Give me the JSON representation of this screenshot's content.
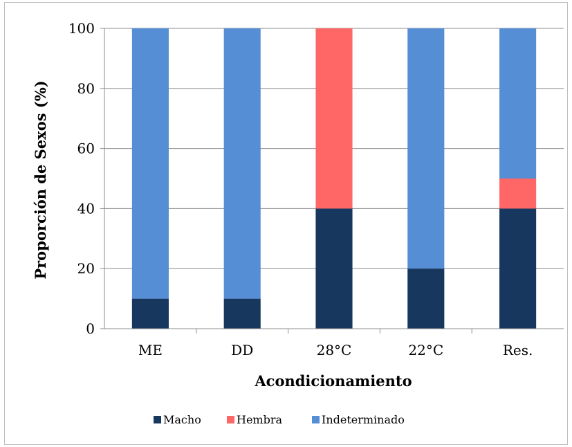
{
  "chart_data": {
    "type": "bar",
    "stacked": true,
    "categories": [
      "ME",
      "DD",
      "28°C",
      "22°C",
      "Res."
    ],
    "series": [
      {
        "name": "Macho",
        "color": "#17375e",
        "values": [
          10,
          10,
          40,
          20,
          40
        ]
      },
      {
        "name": "Hembra",
        "color": "#ff6666",
        "values": [
          0,
          0,
          60,
          0,
          10
        ]
      },
      {
        "name": "Indeterminado",
        "color": "#558ed5",
        "values": [
          90,
          90,
          0,
          80,
          50
        ]
      }
    ],
    "xlabel": "Acondicionamiento",
    "ylabel": "Proporción de Sexos  (%)",
    "ylim": [
      0,
      100
    ],
    "yticks": [
      0,
      20,
      40,
      60,
      80,
      100
    ],
    "grid": true,
    "legend": "bottom"
  }
}
